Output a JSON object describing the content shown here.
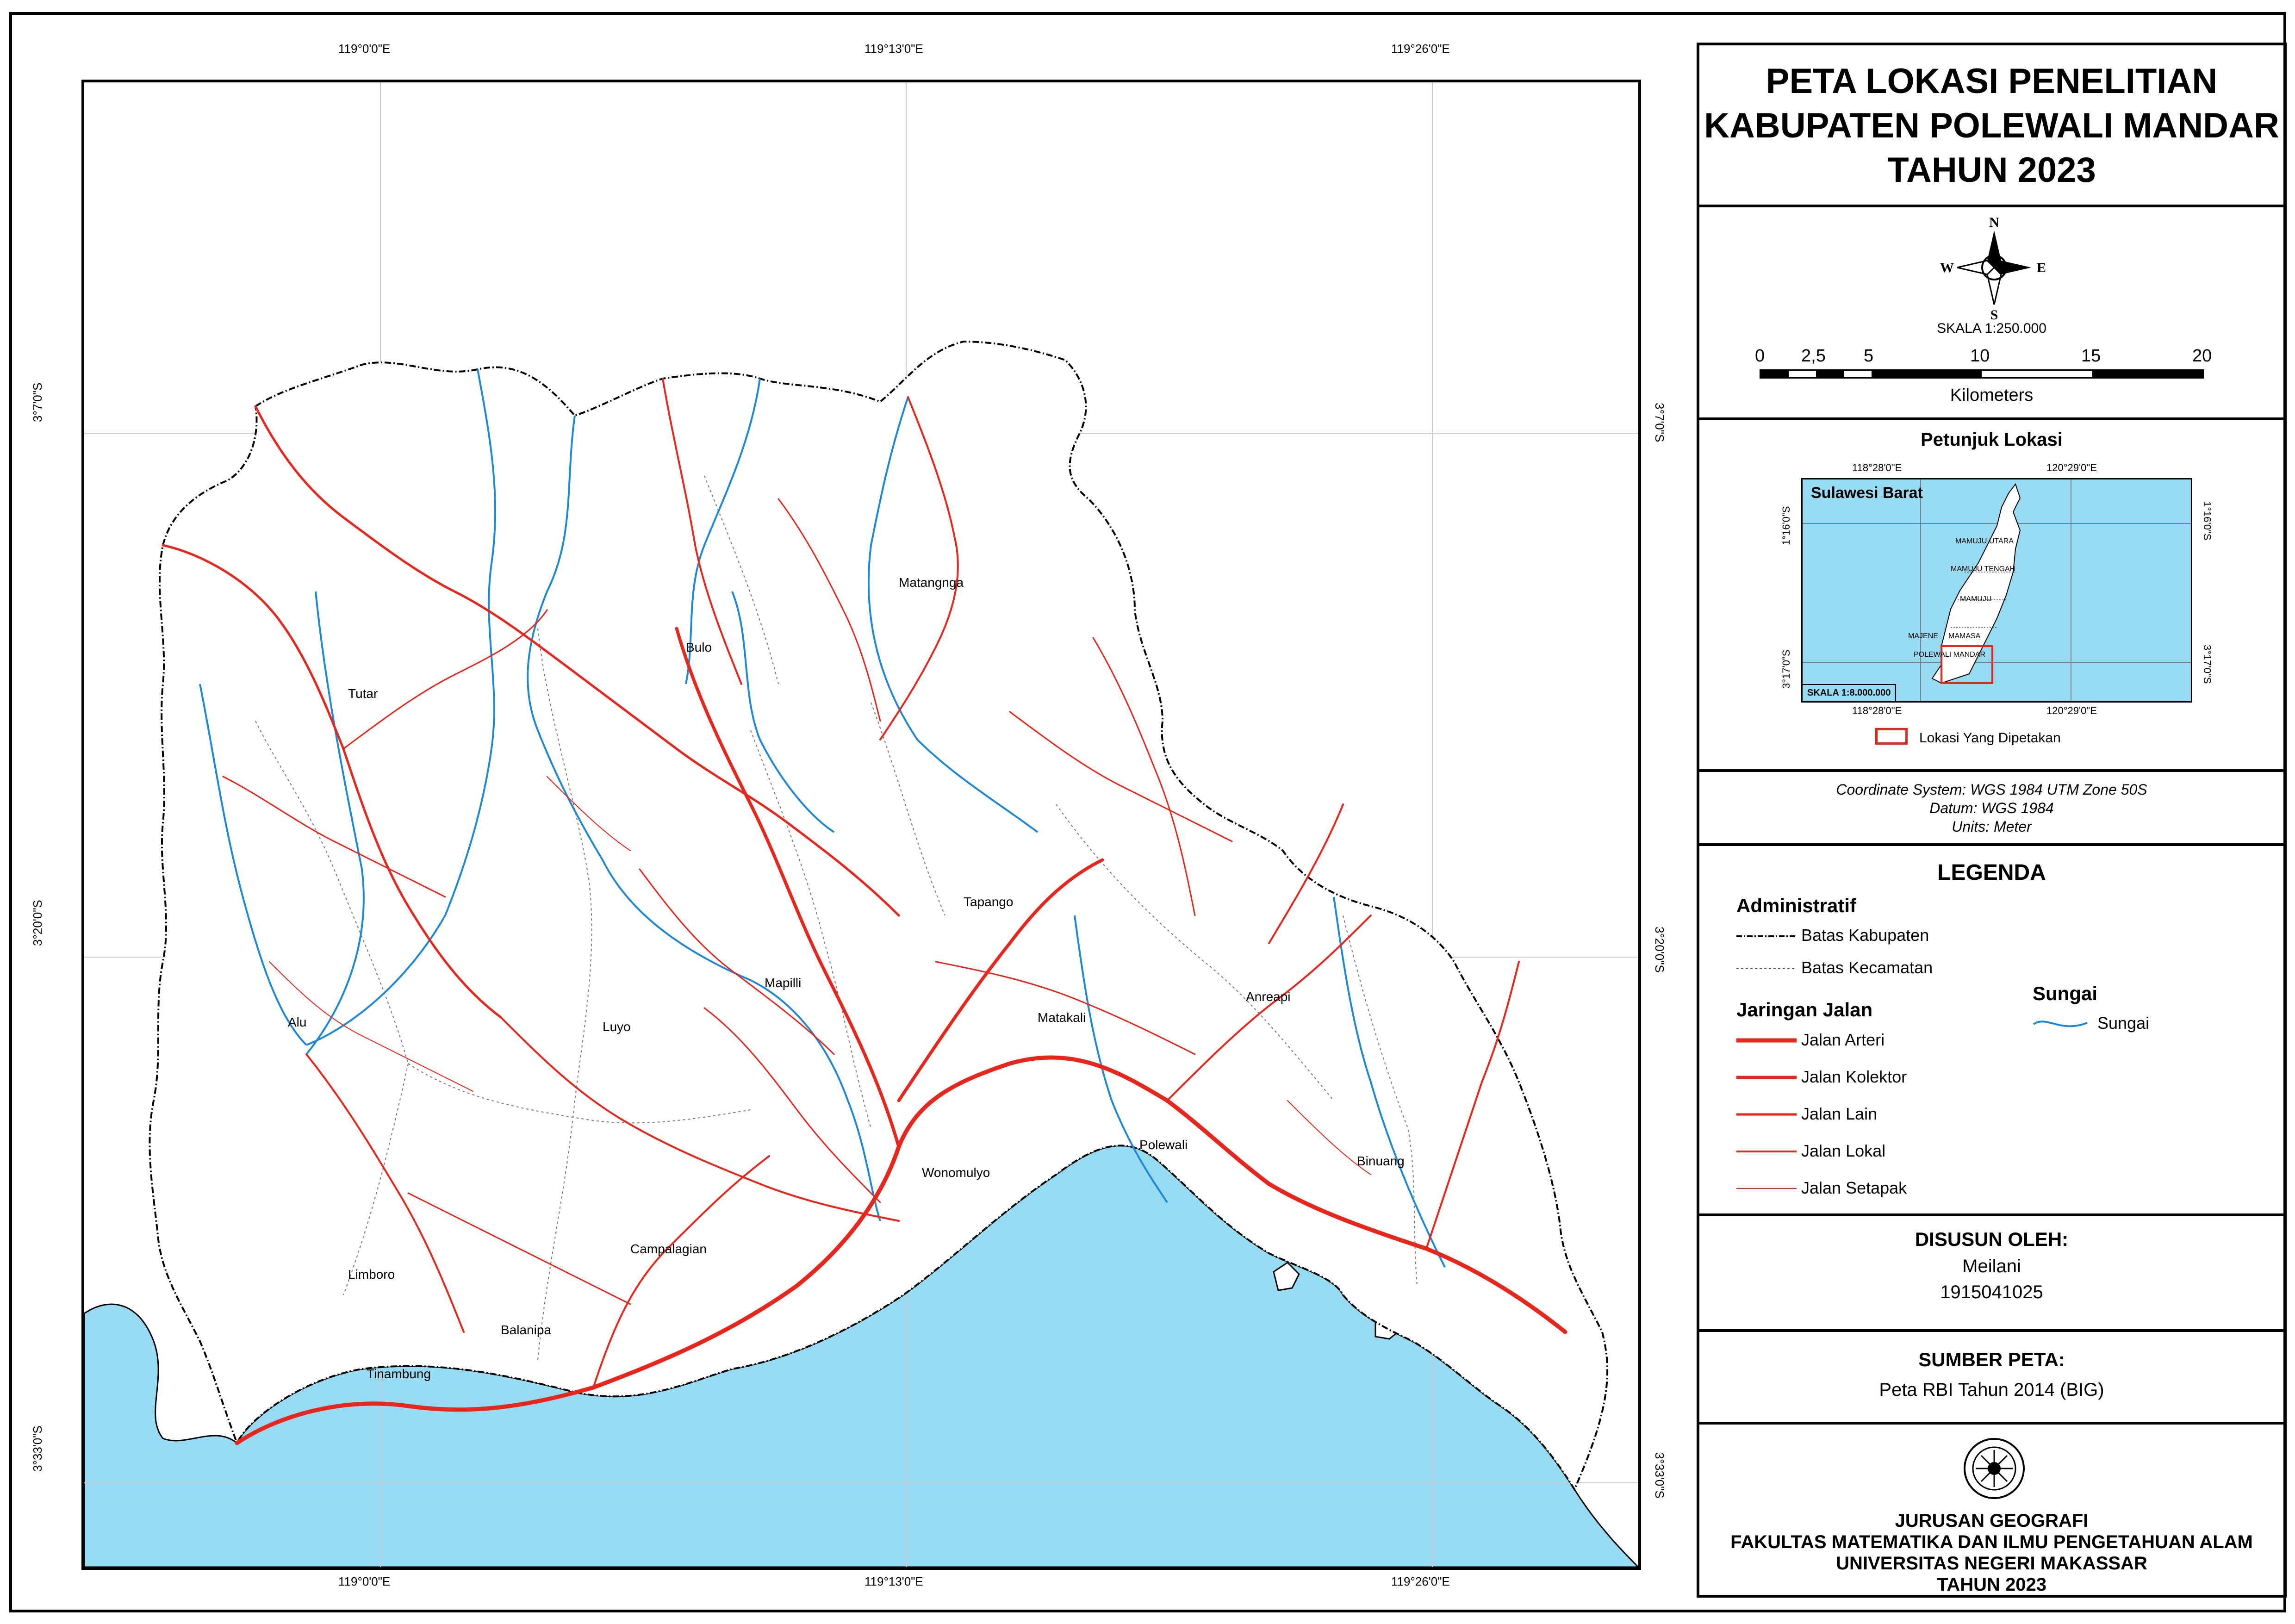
{
  "title": {
    "line1": "PETA LOKASI PENELITIAN",
    "line2": "KABUPATEN POLEWALI MANDAR",
    "line3": "TAHUN 2023"
  },
  "compass": {
    "n": "N",
    "s": "S",
    "e": "E",
    "w": "W"
  },
  "scale": {
    "label": "SKALA 1:250.000",
    "ticks": [
      "0",
      "2,5",
      "5",
      "10",
      "15",
      "20"
    ],
    "unit": "Kilometers"
  },
  "grid": {
    "lon_top": [
      "119°0'0\"E",
      "119°13'0\"E",
      "119°26'0\"E"
    ],
    "lon_bottom": [
      "119°0'0\"E",
      "119°13'0\"E",
      "119°26'0\"E"
    ],
    "lat_left": [
      "3°7'0\"S",
      "3°20'0\"S",
      "3°33'0\"S"
    ],
    "lat_right": [
      "3°7'0\"S",
      "3°20'0\"S",
      "3°33'0\"S"
    ]
  },
  "places": [
    "Matangnga",
    "Bulo",
    "Tutar",
    "Tapango",
    "Mapilli",
    "Luyo",
    "Alu",
    "Matakali",
    "Anreapi",
    "Polewali",
    "Wonomulyo",
    "Binuang",
    "Campalagian",
    "Limboro",
    "Balanipa",
    "Tinambung"
  ],
  "inset": {
    "heading": "Petunjuk Lokasi",
    "region": "Sulawesi Barat",
    "lon_top": [
      "118°28'0\"E",
      "120°29'0\"E"
    ],
    "lon_bottom": [
      "118°28'0\"E",
      "120°29'0\"E"
    ],
    "lat_left": [
      "1°16'0\"S",
      "3°17'0\"S"
    ],
    "lat_right": [
      "1°16'0\"S",
      "3°17'0\"S"
    ],
    "districts": [
      "MAMUJU UTARA",
      "MAMUJU TENGAH",
      "MAMUJU",
      "MAJENE",
      "MAMASA",
      "POLEWALI MANDAR"
    ],
    "scale": "SKALA  1:8.000.000",
    "box_label": "Lokasi Yang Dipetakan"
  },
  "projection": {
    "line1": "Coordinate System: WGS 1984 UTM Zone 50S",
    "line2": "Datum: WGS 1984",
    "line3": "Units: Meter"
  },
  "legend": {
    "heading": "LEGENDA",
    "admin_heading": "Administratif",
    "batas_kabupaten": "Batas Kabupaten",
    "batas_kecamatan": "Batas Kecamatan",
    "road_heading": "Jaringan Jalan",
    "roads": [
      "Jalan Arteri",
      "Jalan Kolektor",
      "Jalan Lain",
      "Jalan Lokal",
      "Jalan Setapak"
    ],
    "river_heading": "Sungai",
    "river": "Sungai"
  },
  "author": {
    "heading": "DISUSUN OLEH:",
    "name": "Meilani",
    "id": "1915041025"
  },
  "source": {
    "heading": "SUMBER PETA:",
    "text": "Peta RBI Tahun 2014 (BIG)"
  },
  "institution": {
    "line1": "JURUSAN GEOGRAFI",
    "line2": "FAKULTAS MATEMATIKA DAN ILMU PENGETAHUAN ALAM",
    "line3": "UNIVERSITAS NEGERI MAKASSAR",
    "line4": "TAHUN 2023"
  },
  "colors": {
    "sea": "#97dbf2",
    "road": "#e8261c",
    "river": "#1e88d8",
    "grid": "#c8c8c8"
  }
}
